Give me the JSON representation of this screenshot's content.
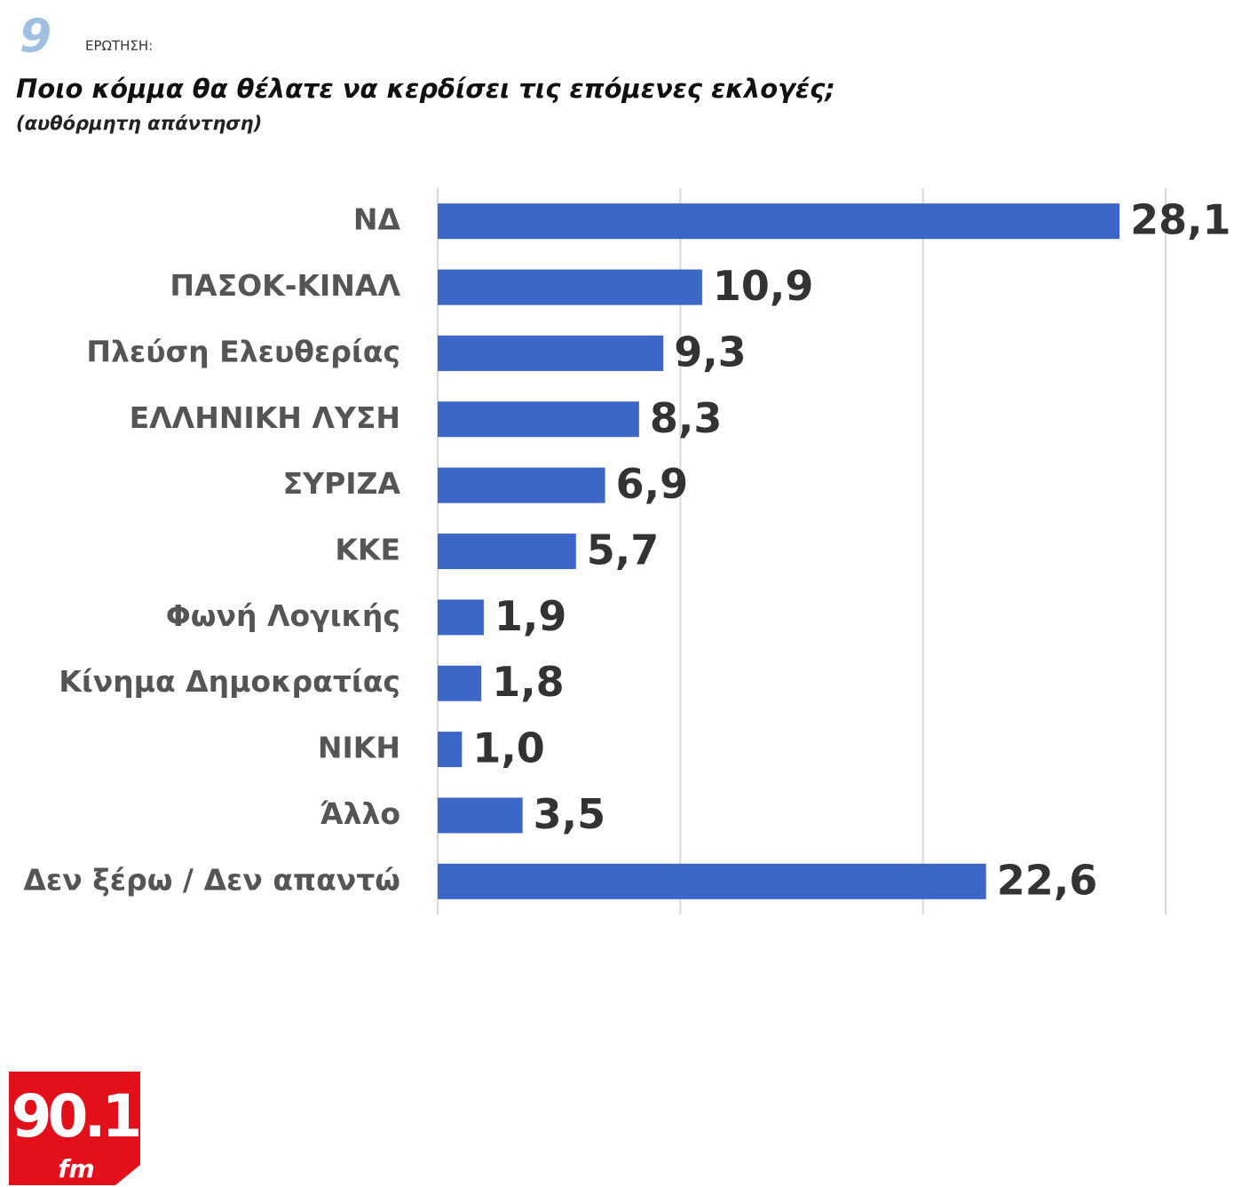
{
  "question_number": "9",
  "question_label": "ΕΡΩΤΗΣΗ:",
  "logo": {
    "text": "90.1",
    "subtext": "fm"
  },
  "chart_data": {
    "type": "bar",
    "orientation": "horizontal",
    "title": "Ποιο κόμμα θα θέλατε να κερδίσει τις επόμενες εκλογές;",
    "subtitle": "(αυθόρμητη απάντηση)",
    "categories": [
      "ΝΔ",
      "ΠΑΣΟΚ-ΚΙΝΑΛ",
      "Πλεύση Ελευθερίας",
      "ΕΛΛΗΝΙΚΗ ΛΥΣΗ",
      "ΣΥΡΙΖΑ",
      "ΚΚΕ",
      "Φωνή Λογικής",
      "Κίνημα Δημοκρατίας",
      "ΝΙΚΗ",
      "Άλλο",
      "Δεν ξέρω / Δεν απαντώ"
    ],
    "values": [
      28.1,
      10.9,
      9.3,
      8.3,
      6.9,
      5.7,
      1.9,
      1.8,
      1.0,
      3.5,
      22.6
    ],
    "value_labels": [
      "28,1",
      "10,9",
      "9,3",
      "8,3",
      "6,9",
      "5,7",
      "1,9",
      "1,8",
      "1,0",
      "3,5",
      "22,6"
    ],
    "color": "#3d66c9",
    "xlim": [
      0,
      30
    ],
    "xticks": [
      0,
      10,
      20,
      30
    ],
    "grid": true
  }
}
